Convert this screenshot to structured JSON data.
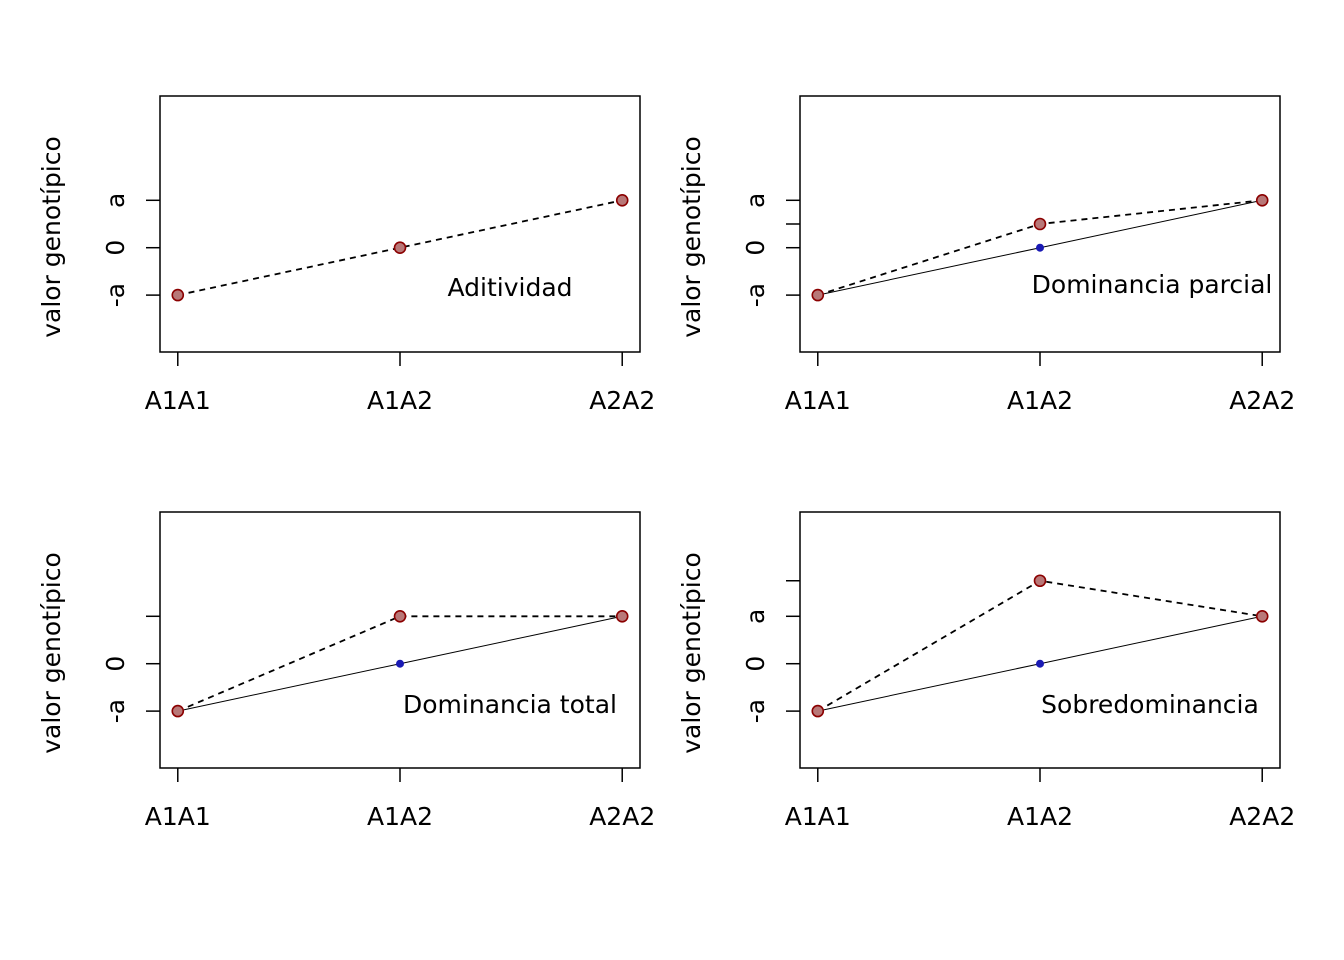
{
  "chart_data": [
    {
      "type": "line",
      "title": "",
      "annotation": "Aditividad",
      "xlabel": "",
      "ylabel": "valor genotípico",
      "categories": [
        "A1A1",
        "A1A2",
        "A2A2"
      ],
      "x": [
        1,
        2,
        3
      ],
      "ylim": [
        -2.2,
        3.2
      ],
      "yticks": [
        {
          "value": -1,
          "label": "-a"
        },
        {
          "value": 0,
          "label": "0"
        },
        {
          "value": 1,
          "label": "a"
        }
      ],
      "series": [
        {
          "values": [
            -1,
            0,
            1
          ],
          "line": "dashed",
          "marker": "brown-filled-circle",
          "color": "#b87878"
        }
      ]
    },
    {
      "type": "line",
      "title": "",
      "annotation": "Dominancia parcial",
      "xlabel": "",
      "ylabel": "valor genotípico",
      "categories": [
        "A1A1",
        "A1A2",
        "A2A2"
      ],
      "x": [
        1,
        2,
        3
      ],
      "ylim": [
        -2.2,
        3.2
      ],
      "yticks": [
        {
          "value": -1,
          "label": "-a"
        },
        {
          "value": 0,
          "label": "0"
        },
        {
          "value": 0.5,
          "label": ""
        },
        {
          "value": 1,
          "label": "a"
        }
      ],
      "series": [
        {
          "values": [
            -1,
            0,
            1
          ],
          "line": "solid",
          "marker": "blue-dot",
          "color": "#1a1ab4"
        },
        {
          "values": [
            -1,
            0.5,
            1
          ],
          "line": "dashed",
          "marker": "brown-filled-circle",
          "color": "#b87878"
        }
      ]
    },
    {
      "type": "line",
      "title": "",
      "annotation": "Dominancia total",
      "xlabel": "",
      "ylabel": "valor genotípico",
      "categories": [
        "A1A1",
        "A1A2",
        "A2A2"
      ],
      "x": [
        1,
        2,
        3
      ],
      "ylim": [
        -2.2,
        3.2
      ],
      "yticks": [
        {
          "value": -1,
          "label": "-a"
        },
        {
          "value": 0,
          "label": "0"
        },
        {
          "value": 1,
          "label": ""
        }
      ],
      "series": [
        {
          "values": [
            -1,
            0,
            1
          ],
          "line": "solid",
          "marker": "blue-dot",
          "color": "#1a1ab4"
        },
        {
          "values": [
            -1,
            1,
            1
          ],
          "line": "dashed",
          "marker": "brown-filled-circle",
          "color": "#b87878"
        }
      ]
    },
    {
      "type": "line",
      "title": "",
      "annotation": "Sobredominancia",
      "xlabel": "",
      "ylabel": "valor genotípico",
      "categories": [
        "A1A1",
        "A1A2",
        "A2A2"
      ],
      "x": [
        1,
        2,
        3
      ],
      "ylim": [
        -2.2,
        3.2
      ],
      "yticks": [
        {
          "value": -1,
          "label": "-a"
        },
        {
          "value": 0,
          "label": "0"
        },
        {
          "value": 1,
          "label": "a"
        },
        {
          "value": 1.75,
          "label": ""
        }
      ],
      "series": [
        {
          "values": [
            -1,
            0,
            1
          ],
          "line": "solid",
          "marker": "blue-dot",
          "color": "#1a1ab4"
        },
        {
          "values": [
            -1,
            1.75,
            1
          ],
          "line": "dashed",
          "marker": "brown-filled-circle",
          "color": "#b87878"
        }
      ]
    }
  ]
}
